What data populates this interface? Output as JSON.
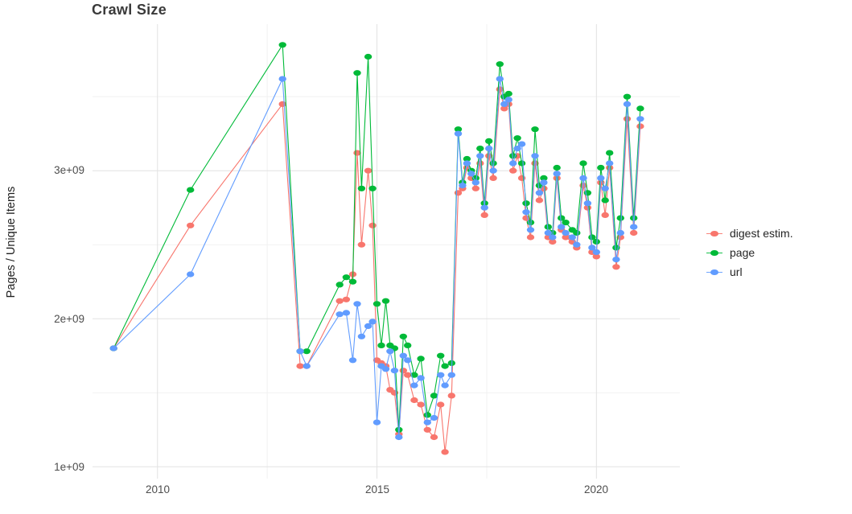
{
  "title": "Crawl Size",
  "chart_data": {
    "type": "line",
    "title": "Crawl Size",
    "xlabel": "",
    "ylabel": "Pages / Unique Items",
    "values_unit": "pages (value 1.0 = 1e+09)",
    "xlim": [
      2008.52,
      2021.9
    ],
    "ylim": [
      0.92,
      3.99
    ],
    "grid": true,
    "legend_position": "right",
    "x_ticks": [
      {
        "value": 2010,
        "label": "2010"
      },
      {
        "value": 2015,
        "label": "2015"
      },
      {
        "value": 2020,
        "label": "2020"
      }
    ],
    "y_ticks": [
      {
        "value": 1.0,
        "label": "1e+09"
      },
      {
        "value": 2.0,
        "label": "2e+09"
      },
      {
        "value": 3.0,
        "label": "3e+09"
      }
    ],
    "x_minor": [
      2012.5,
      2017.5
    ],
    "y_minor": [
      1.5,
      2.5,
      3.5
    ],
    "x": [
      2009.0,
      2010.75,
      2012.85,
      2013.25,
      2013.4,
      2014.15,
      2014.3,
      2014.45,
      2014.55,
      2014.65,
      2014.8,
      2014.9,
      2015.0,
      2015.1,
      2015.2,
      2015.3,
      2015.4,
      2015.5,
      2015.6,
      2015.7,
      2015.85,
      2016.0,
      2016.15,
      2016.3,
      2016.45,
      2016.55,
      2016.7,
      2016.85,
      2016.95,
      2017.05,
      2017.15,
      2017.25,
      2017.35,
      2017.45,
      2017.55,
      2017.65,
      2017.8,
      2017.9,
      2018.0,
      2018.1,
      2018.2,
      2018.3,
      2018.4,
      2018.5,
      2018.6,
      2018.7,
      2018.8,
      2018.9,
      2019.0,
      2019.1,
      2019.2,
      2019.3,
      2019.45,
      2019.55,
      2019.7,
      2019.8,
      2019.9,
      2020.0,
      2020.1,
      2020.2,
      2020.3,
      2020.45,
      2020.55,
      2020.7,
      2020.85,
      2021.0
    ],
    "series": [
      {
        "name": "digest estim.",
        "color": "#F8766D",
        "values": [
          1.8,
          2.63,
          3.45,
          1.68,
          1.68,
          2.12,
          2.13,
          2.3,
          3.12,
          2.5,
          3.0,
          2.63,
          1.72,
          1.7,
          1.68,
          1.52,
          1.5,
          1.22,
          1.65,
          1.62,
          1.45,
          1.42,
          1.25,
          1.2,
          1.42,
          1.1,
          1.48,
          2.85,
          2.88,
          3.02,
          2.95,
          2.88,
          3.05,
          2.7,
          3.1,
          2.95,
          3.55,
          3.42,
          3.45,
          3.0,
          3.1,
          2.95,
          2.68,
          2.55,
          3.05,
          2.8,
          2.88,
          2.55,
          2.52,
          2.95,
          2.6,
          2.55,
          2.52,
          2.48,
          2.9,
          2.75,
          2.45,
          2.42,
          2.92,
          2.7,
          3.02,
          2.35,
          2.55,
          3.35,
          2.58,
          3.3
        ]
      },
      {
        "name": "page",
        "color": "#00BA38",
        "values": [
          1.8,
          2.87,
          3.85,
          1.78,
          1.78,
          2.23,
          2.28,
          2.25,
          3.66,
          2.88,
          3.77,
          2.88,
          2.1,
          1.82,
          2.12,
          1.82,
          1.8,
          1.25,
          1.88,
          1.82,
          1.62,
          1.73,
          1.35,
          1.48,
          1.75,
          1.68,
          1.7,
          3.28,
          2.92,
          3.08,
          3.0,
          2.95,
          3.15,
          2.78,
          3.2,
          3.05,
          3.72,
          3.5,
          3.52,
          3.1,
          3.22,
          3.05,
          2.78,
          2.65,
          3.28,
          2.9,
          2.95,
          2.62,
          2.58,
          3.02,
          2.68,
          2.65,
          2.6,
          2.58,
          3.05,
          2.85,
          2.55,
          2.52,
          3.02,
          2.8,
          3.12,
          2.48,
          2.68,
          3.5,
          2.68,
          3.42
        ]
      },
      {
        "name": "url",
        "color": "#619CFF",
        "values": [
          1.8,
          2.3,
          3.62,
          1.78,
          1.68,
          2.03,
          2.04,
          1.72,
          2.1,
          1.88,
          1.95,
          1.98,
          1.3,
          1.68,
          1.66,
          1.78,
          1.65,
          1.2,
          1.75,
          1.72,
          1.55,
          1.6,
          1.3,
          1.33,
          1.62,
          1.55,
          1.62,
          3.25,
          2.9,
          3.05,
          2.98,
          2.92,
          3.1,
          2.75,
          3.15,
          3.0,
          3.62,
          3.45,
          3.48,
          3.05,
          3.15,
          3.18,
          2.72,
          2.6,
          3.1,
          2.85,
          2.92,
          2.58,
          2.55,
          2.98,
          2.62,
          2.58,
          2.55,
          2.5,
          2.95,
          2.78,
          2.48,
          2.45,
          2.95,
          2.88,
          3.05,
          2.4,
          2.58,
          3.45,
          2.62,
          3.35
        ]
      }
    ],
    "style": {
      "grid_major_color": "#e2e2e2",
      "grid_minor_color": "#f1f1f1",
      "background": "#ffffff"
    }
  }
}
